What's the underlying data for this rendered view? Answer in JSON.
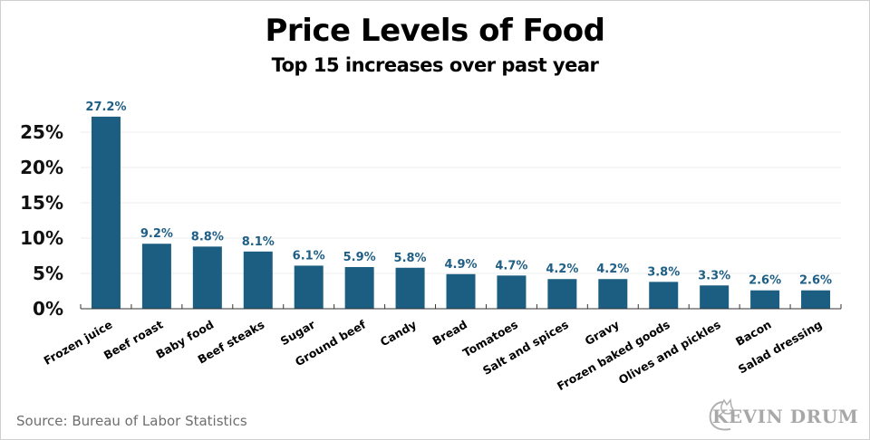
{
  "chart_data": {
    "type": "bar",
    "title": "Price Levels of Food",
    "subtitle": "Top 15 increases over past year",
    "xlabel": "",
    "ylabel": "",
    "categories": [
      "Frozen juice",
      "Beef roast",
      "Baby food",
      "Beef steaks",
      "Sugar",
      "Ground beef",
      "Candy",
      "Bread",
      "Tomatoes",
      "Salt and spices",
      "Gravy",
      "Frozen baked goods",
      "Olives and pickles",
      "Bacon",
      "Salad dressing"
    ],
    "values": [
      27.2,
      9.2,
      8.8,
      8.1,
      6.1,
      5.9,
      5.8,
      4.9,
      4.7,
      4.2,
      4.2,
      3.8,
      3.3,
      2.6,
      2.6
    ],
    "data_labels": [
      "27.2%",
      "9.2%",
      "8.8%",
      "8.1%",
      "6.1%",
      "5.9%",
      "5.8%",
      "4.9%",
      "4.7%",
      "4.2%",
      "4.2%",
      "3.8%",
      "3.3%",
      "2.6%",
      "2.6%"
    ],
    "yticks": [
      0,
      5,
      10,
      15,
      20,
      25
    ],
    "ytick_labels": [
      "0%",
      "5%",
      "10%",
      "15%",
      "20%",
      "25%"
    ],
    "ylim": [
      0,
      27.2
    ],
    "grid": true,
    "bar_color": "#1b5e82",
    "label_color": "#1f5f86",
    "grid_color": "#ececec"
  },
  "footer": {
    "source": "Source: Bureau of Labor Statistics",
    "brand": "KEVIN DRUM"
  }
}
